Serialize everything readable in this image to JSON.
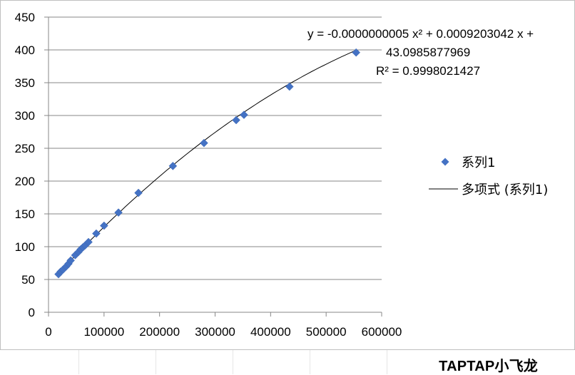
{
  "chart_data": {
    "type": "scatter",
    "xlim": [
      0,
      600000
    ],
    "ylim": [
      0,
      450
    ],
    "x_ticks": [
      "0",
      "100000",
      "200000",
      "300000",
      "400000",
      "500000",
      "600000"
    ],
    "y_ticks": [
      "0",
      "50",
      "100",
      "150",
      "200",
      "250",
      "300",
      "350",
      "400",
      "450"
    ],
    "grid": "horizontal",
    "marker_color": "#4472C4",
    "series": [
      {
        "name": "系列1",
        "points": [
          [
            18000,
            58
          ],
          [
            22000,
            62
          ],
          [
            26000,
            65
          ],
          [
            32000,
            70
          ],
          [
            36000,
            74
          ],
          [
            40000,
            79
          ],
          [
            48000,
            87
          ],
          [
            54000,
            92
          ],
          [
            58000,
            96
          ],
          [
            62000,
            99
          ],
          [
            66000,
            102
          ],
          [
            72000,
            107
          ],
          [
            86000,
            120
          ],
          [
            100000,
            132
          ],
          [
            126000,
            152
          ],
          [
            162000,
            182
          ],
          [
            224000,
            223
          ],
          [
            280000,
            258
          ],
          [
            338000,
            293
          ],
          [
            352000,
            301
          ],
          [
            434000,
            344
          ],
          [
            554000,
            396
          ]
        ]
      }
    ],
    "trendline": {
      "legend_label": "多项式 (系列1)",
      "a": -5e-10,
      "b": 0.0009203042,
      "c": 43.0985877969,
      "x_range": [
        18000,
        554000
      ],
      "color": "#000000"
    },
    "equation_lines": [
      "y = -0.0000000005 x² + 0.0009203042 x +",
      "43.0985877969",
      "R² = 0.9998021427"
    ],
    "legend": {
      "position": "right",
      "items": [
        "系列1",
        "多项式 (系列1)"
      ]
    }
  },
  "watermark": "TAPTAP小飞龙"
}
